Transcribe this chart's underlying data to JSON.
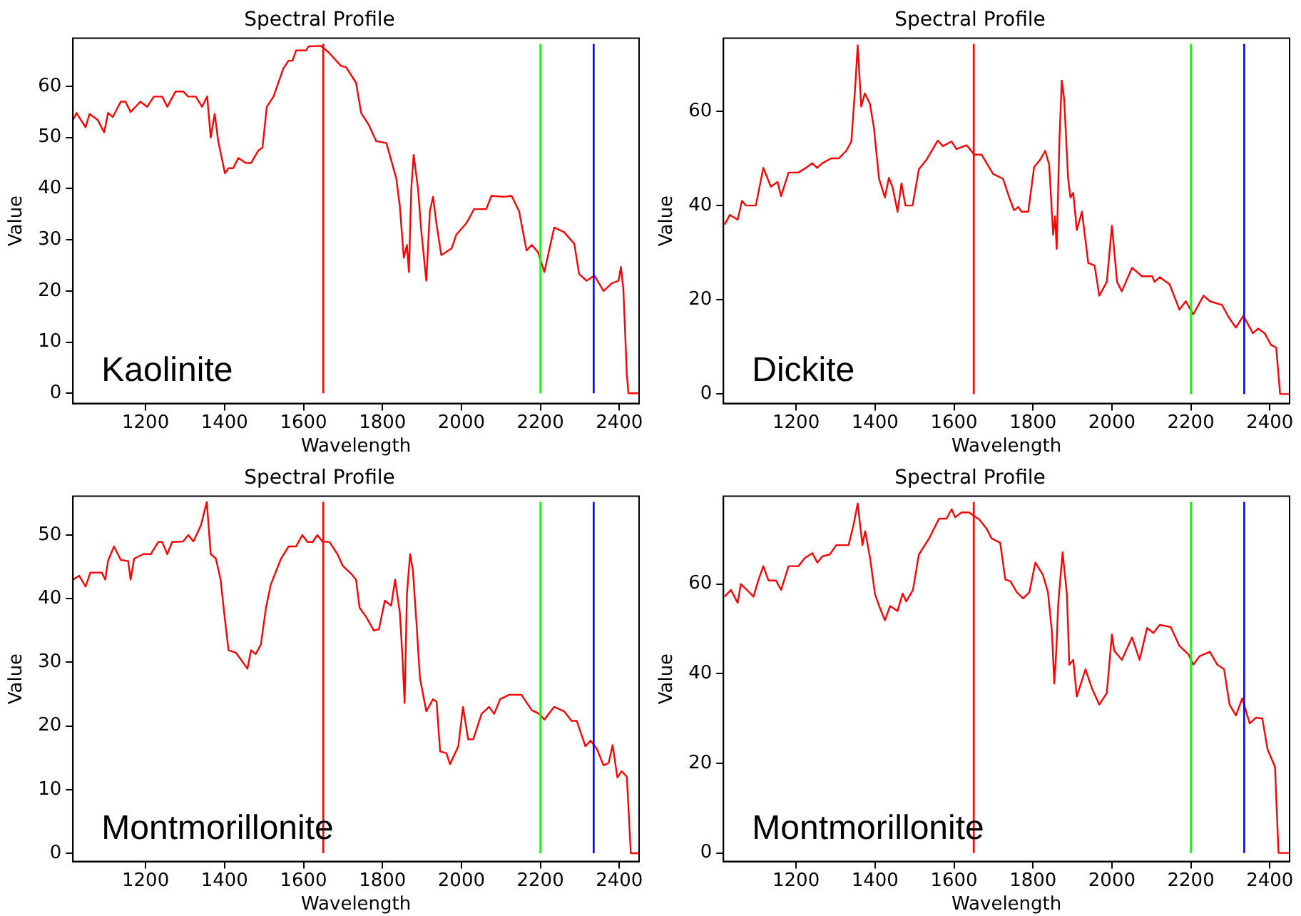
{
  "chart_data": [
    {
      "type": "line",
      "title": "Spectral Profile",
      "xlabel": "Wavelength",
      "ylabel": "Value",
      "annotations": [
        "Kaolinite"
      ],
      "xlim": [
        1016,
        2450
      ],
      "ylim": [
        -2,
        69.4
      ],
      "xticks": [
        1200,
        1400,
        1600,
        1800,
        2000,
        2200,
        2400
      ],
      "yticks": [
        0,
        10,
        20,
        30,
        40,
        50,
        60
      ],
      "ref_lines": [
        {
          "axis": "x",
          "value": 1650,
          "color": "#ff0000"
        },
        {
          "axis": "x",
          "value": 2200,
          "color": "#00ff00"
        },
        {
          "axis": "x",
          "value": 2335,
          "color": "#0000ff"
        }
      ],
      "series": [
        {
          "color": "#ff0000",
          "x": [
            1016,
            1025,
            1048,
            1058,
            1079,
            1095,
            1105,
            1117,
            1137,
            1149,
            1162,
            1187,
            1204,
            1221,
            1242,
            1255,
            1276,
            1295,
            1308,
            1327,
            1343,
            1356,
            1365,
            1375,
            1384,
            1401,
            1410,
            1422,
            1435,
            1454,
            1467,
            1486,
            1496,
            1507,
            1524,
            1549,
            1562,
            1572,
            1581,
            1606,
            1613,
            1644,
            1663,
            1695,
            1708,
            1733,
            1746,
            1765,
            1784,
            1810,
            1835,
            1844,
            1854,
            1862,
            1867,
            1873,
            1879,
            1890,
            1898,
            1911,
            1920,
            1928,
            1937,
            1949,
            1975,
            1987,
            2013,
            2032,
            2063,
            2076,
            2108,
            2127,
            2146,
            2165,
            2178,
            2194,
            2210,
            2235,
            2260,
            2286,
            2298,
            2317,
            2337,
            2360,
            2381,
            2398,
            2404,
            2410,
            2419,
            2423,
            2450
          ],
          "values": [
            53.4,
            54.8,
            52,
            54.6,
            53.4,
            51,
            54.8,
            54,
            57,
            57,
            55,
            57,
            56,
            58,
            58,
            56,
            59,
            59,
            58,
            58,
            56,
            58,
            50,
            54.6,
            49.3,
            43,
            44,
            44,
            46,
            45,
            45,
            47.5,
            48,
            56,
            58,
            63.5,
            65,
            65,
            67,
            67,
            67.8,
            67.9,
            66.7,
            64,
            63.7,
            60.7,
            54.8,
            52.5,
            49.3,
            48.9,
            42,
            36.5,
            26.5,
            29,
            23.7,
            40,
            46.6,
            40,
            32,
            22,
            35.6,
            38.4,
            33,
            27,
            28.3,
            31,
            33.3,
            36,
            36,
            38.6,
            38.4,
            38.6,
            35.6,
            27.9,
            29,
            27.6,
            23.7,
            32.4,
            31.5,
            29.2,
            23.3,
            22,
            23,
            20,
            21.5,
            22,
            24.7,
            20.5,
            3.7,
            0,
            0
          ]
        }
      ]
    },
    {
      "type": "line",
      "title": "Spectral Profile",
      "xlabel": "Wavelength",
      "ylabel": "Value",
      "annotations": [
        "Dickite"
      ],
      "xlim": [
        1016,
        2450
      ],
      "ylim": [
        -2,
        75.5
      ],
      "xticks": [
        1200,
        1400,
        1600,
        1800,
        2000,
        2200,
        2400
      ],
      "yticks": [
        0,
        20,
        40,
        60
      ],
      "ref_lines": [
        {
          "axis": "x",
          "value": 1650,
          "color": "#ff0000"
        },
        {
          "axis": "x",
          "value": 2200,
          "color": "#00ff00"
        },
        {
          "axis": "x",
          "value": 2335,
          "color": "#0000ff"
        }
      ],
      "series": [
        {
          "color": "#ff0000",
          "x": [
            1019,
            1032,
            1052,
            1063,
            1073,
            1098,
            1117,
            1136,
            1153,
            1162,
            1181,
            1206,
            1225,
            1241,
            1253,
            1267,
            1289,
            1308,
            1327,
            1340,
            1350,
            1356,
            1365,
            1374,
            1387,
            1397,
            1410,
            1425,
            1435,
            1445,
            1457,
            1467,
            1477,
            1495,
            1511,
            1530,
            1559,
            1572,
            1594,
            1606,
            1632,
            1651,
            1670,
            1699,
            1724,
            1740,
            1752,
            1763,
            1771,
            1788,
            1803,
            1818,
            1831,
            1841,
            1851,
            1856,
            1860,
            1867,
            1873,
            1879,
            1889,
            1895,
            1902,
            1911,
            1924,
            1940,
            1956,
            1968,
            1987,
            2000,
            2013,
            2025,
            2051,
            2076,
            2102,
            2108,
            2121,
            2146,
            2171,
            2187,
            2206,
            2232,
            2248,
            2279,
            2295,
            2314,
            2333,
            2357,
            2370,
            2387,
            2403,
            2416,
            2426,
            2449
          ],
          "values": [
            36,
            38,
            37,
            41,
            40,
            40,
            48,
            44,
            45,
            42,
            47,
            47,
            48,
            49,
            48,
            49,
            50,
            50,
            51.6,
            53.6,
            65.5,
            74,
            61,
            63.8,
            61.6,
            56.6,
            45.7,
            41.7,
            45.9,
            43.7,
            38.7,
            44.7,
            40,
            40,
            47.7,
            49.7,
            53.8,
            52.6,
            53.6,
            52,
            52.8,
            50.8,
            50.8,
            46.7,
            45.7,
            41.7,
            39,
            39.7,
            38.7,
            38.7,
            48.2,
            49.7,
            51.6,
            48.7,
            33.8,
            37.7,
            30.8,
            54,
            66.5,
            62.6,
            45.7,
            41.7,
            42.7,
            34.8,
            38.7,
            27.8,
            27.3,
            20.9,
            23.8,
            35.7,
            23.8,
            21.8,
            26.8,
            25,
            25,
            23.8,
            24.8,
            23.3,
            17.9,
            19.7,
            16.9,
            20.9,
            19.7,
            18.9,
            16.4,
            14.1,
            16.6,
            12.9,
            13.9,
            12.9,
            10.4,
            9.9,
            0,
            0
          ]
        }
      ]
    },
    {
      "type": "line",
      "title": "Spectral Profile",
      "xlabel": "Wavelength",
      "ylabel": "Value",
      "annotations": [
        "Montmorillonite"
      ],
      "xlim": [
        1016,
        2450
      ],
      "ylim": [
        -1.3,
        56.1
      ],
      "xticks": [
        1200,
        1400,
        1600,
        1800,
        2000,
        2200,
        2400
      ],
      "yticks": [
        0,
        10,
        20,
        30,
        40,
        50
      ],
      "ref_lines": [
        {
          "axis": "x",
          "value": 1650,
          "color": "#ff0000"
        },
        {
          "axis": "x",
          "value": 2200,
          "color": "#00ff00"
        },
        {
          "axis": "x",
          "value": 2335,
          "color": "#0000ff"
        }
      ],
      "series": [
        {
          "color": "#ff0000",
          "x": [
            1016,
            1032,
            1048,
            1060,
            1089,
            1098,
            1105,
            1120,
            1137,
            1156,
            1162,
            1171,
            1194,
            1213,
            1232,
            1242,
            1255,
            1267,
            1295,
            1308,
            1321,
            1340,
            1355,
            1365,
            1378,
            1390,
            1399,
            1410,
            1429,
            1458,
            1467,
            1479,
            1492,
            1505,
            1517,
            1543,
            1562,
            1581,
            1597,
            1610,
            1623,
            1635,
            1648,
            1666,
            1686,
            1699,
            1721,
            1733,
            1742,
            1759,
            1778,
            1791,
            1806,
            1822,
            1832,
            1844,
            1851,
            1856,
            1862,
            1870,
            1877,
            1886,
            1895,
            1911,
            1928,
            1937,
            1946,
            1962,
            1971,
            1992,
            2004,
            2017,
            2030,
            2051,
            2070,
            2083,
            2098,
            2121,
            2152,
            2178,
            2197,
            2210,
            2235,
            2260,
            2279,
            2292,
            2314,
            2327,
            2343,
            2360,
            2373,
            2383,
            2395,
            2406,
            2419,
            2429,
            2450
          ],
          "values": [
            43,
            43.6,
            41.9,
            44.1,
            44.1,
            43,
            46,
            48.2,
            46.1,
            45.9,
            43,
            46.3,
            47,
            47,
            48.9,
            48.9,
            47,
            48.9,
            49,
            50,
            49,
            51.5,
            55.2,
            47,
            46.3,
            43,
            37.8,
            31.9,
            31.5,
            29,
            31.9,
            31.3,
            32.8,
            38.6,
            42.2,
            46.3,
            48.2,
            48.2,
            50,
            48.9,
            48.9,
            50,
            49,
            48.9,
            47,
            45.2,
            43.9,
            43,
            38.6,
            37.1,
            35,
            35.2,
            39.7,
            38.9,
            43,
            37.8,
            30.4,
            23.6,
            40.8,
            47,
            44.5,
            36.3,
            27.5,
            22.3,
            24.2,
            23.8,
            16,
            15.7,
            14,
            16.8,
            23,
            17.9,
            17.9,
            21.9,
            23,
            21.9,
            24.2,
            24.9,
            24.9,
            22.5,
            21.9,
            21,
            23,
            22.3,
            20.8,
            20.8,
            16.8,
            17.7,
            16.4,
            13.8,
            14.2,
            17,
            11.9,
            12.9,
            12,
            0,
            0
          ]
        }
      ]
    },
    {
      "type": "line",
      "title": "Spectral Profile",
      "xlabel": "Wavelength",
      "ylabel": "Value",
      "annotations": [
        "Montmorillonite"
      ],
      "xlim": [
        1016,
        2450
      ],
      "ylim": [
        -1.9,
        79.6
      ],
      "xticks": [
        1200,
        1400,
        1600,
        1800,
        2000,
        2200,
        2400
      ],
      "yticks": [
        0,
        20,
        40,
        60
      ],
      "ref_lines": [
        {
          "axis": "x",
          "value": 1650,
          "color": "#ff0000"
        },
        {
          "axis": "x",
          "value": 2200,
          "color": "#00ff00"
        },
        {
          "axis": "x",
          "value": 2335,
          "color": "#0000ff"
        }
      ],
      "series": [
        {
          "color": "#ff0000",
          "x": [
            1019,
            1035,
            1052,
            1060,
            1079,
            1092,
            1105,
            1117,
            1130,
            1149,
            1162,
            1181,
            1206,
            1222,
            1241,
            1254,
            1267,
            1285,
            1302,
            1333,
            1346,
            1356,
            1368,
            1375,
            1387,
            1400,
            1413,
            1425,
            1438,
            1457,
            1470,
            1479,
            1496,
            1511,
            1537,
            1562,
            1581,
            1594,
            1603,
            1619,
            1638,
            1664,
            1683,
            1695,
            1717,
            1730,
            1743,
            1759,
            1775,
            1791,
            1806,
            1825,
            1838,
            1848,
            1854,
            1859,
            1864,
            1875,
            1886,
            1892,
            1902,
            1911,
            1933,
            1949,
            1968,
            1987,
            2000,
            2006,
            2025,
            2051,
            2070,
            2089,
            2105,
            2121,
            2149,
            2171,
            2194,
            2206,
            2222,
            2248,
            2267,
            2284,
            2298,
            2314,
            2330,
            2349,
            2365,
            2381,
            2394,
            2413,
            2422,
            2449
          ],
          "values": [
            57.2,
            58.7,
            55.8,
            60,
            58.4,
            57.2,
            61,
            64,
            60.8,
            60.8,
            58.7,
            64,
            64,
            65.8,
            66.9,
            64.8,
            66.2,
            66.6,
            68.7,
            68.7,
            73.4,
            78,
            68.7,
            71.8,
            66,
            57.7,
            54.5,
            51.9,
            55.1,
            54,
            57.9,
            56.1,
            58.7,
            66.6,
            70.2,
            74.6,
            74.6,
            76.7,
            74.9,
            76,
            76,
            74.4,
            72.3,
            70.2,
            69.2,
            61,
            60.6,
            58.2,
            56.8,
            58.2,
            64.8,
            62.1,
            58.2,
            49.3,
            37.8,
            45.1,
            55.6,
            67.1,
            57.7,
            42,
            43.1,
            34.9,
            41,
            36.8,
            33.1,
            35.7,
            48.8,
            45.1,
            43.1,
            48.1,
            43.1,
            50.2,
            49.1,
            50.9,
            50.4,
            46.2,
            44.3,
            42,
            43.9,
            44.9,
            42,
            41,
            33.1,
            30.7,
            34.5,
            28.9,
            30.2,
            30,
            23.2,
            19.2,
            0,
            0
          ]
        }
      ]
    }
  ]
}
